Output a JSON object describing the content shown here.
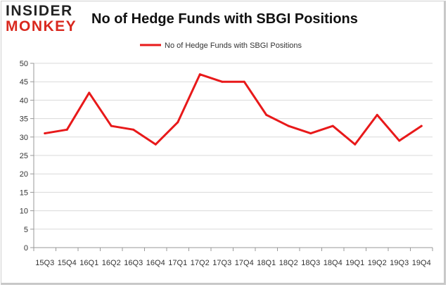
{
  "logo": {
    "line1": "INSIDER",
    "line2": "MONKEY"
  },
  "colors": {
    "series": "#e8191a",
    "grid": "#d9d9d9",
    "axis": "#999999",
    "text": "#333333"
  },
  "chart_data": {
    "type": "line",
    "title": "No of Hedge Funds with SBGI Positions",
    "xlabel": "",
    "ylabel": "",
    "ylim": [
      0,
      50
    ],
    "yticks": [
      0,
      5,
      10,
      15,
      20,
      25,
      30,
      35,
      40,
      45,
      50
    ],
    "grid": true,
    "legend_position": "top-center",
    "categories": [
      "15Q3",
      "15Q4",
      "16Q1",
      "16Q2",
      "16Q3",
      "16Q4",
      "17Q1",
      "17Q2",
      "17Q3",
      "17Q4",
      "18Q1",
      "18Q2",
      "18Q3",
      "18Q4",
      "19Q1",
      "19Q2",
      "19Q3",
      "19Q4"
    ],
    "series": [
      {
        "name": "No of Hedge Funds with SBGI Positions",
        "values": [
          31,
          32,
          42,
          33,
          32,
          28,
          34,
          47,
          45,
          45,
          36,
          33,
          31,
          33,
          28,
          36,
          29,
          33
        ]
      }
    ]
  }
}
